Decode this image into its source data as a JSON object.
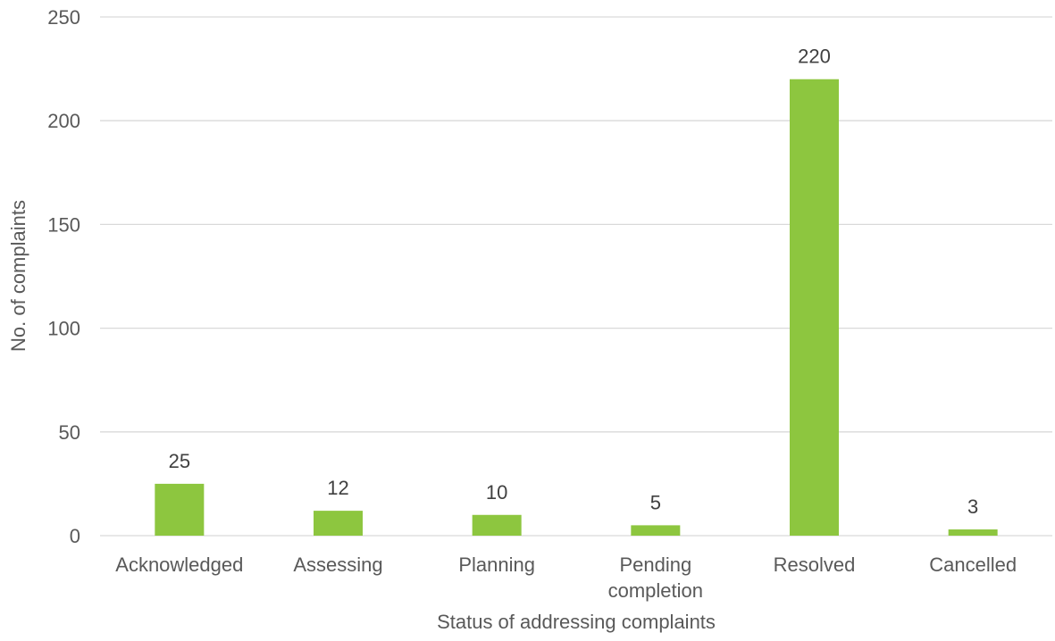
{
  "chart_data": {
    "type": "bar",
    "categories": [
      [
        "Acknowledged"
      ],
      [
        "Assessing"
      ],
      [
        "Planning"
      ],
      [
        "Pending",
        "completion"
      ],
      [
        "Resolved"
      ],
      [
        "Cancelled"
      ]
    ],
    "values": [
      25,
      12,
      10,
      5,
      220,
      3
    ],
    "xlabel": "Status of addressing complaints",
    "ylabel": "No. of complaints",
    "ylim": [
      0,
      250
    ],
    "yticks": [
      0,
      50,
      100,
      150,
      200,
      250
    ],
    "grid": true,
    "legend": "none",
    "bar_color": "#8dc63f"
  }
}
